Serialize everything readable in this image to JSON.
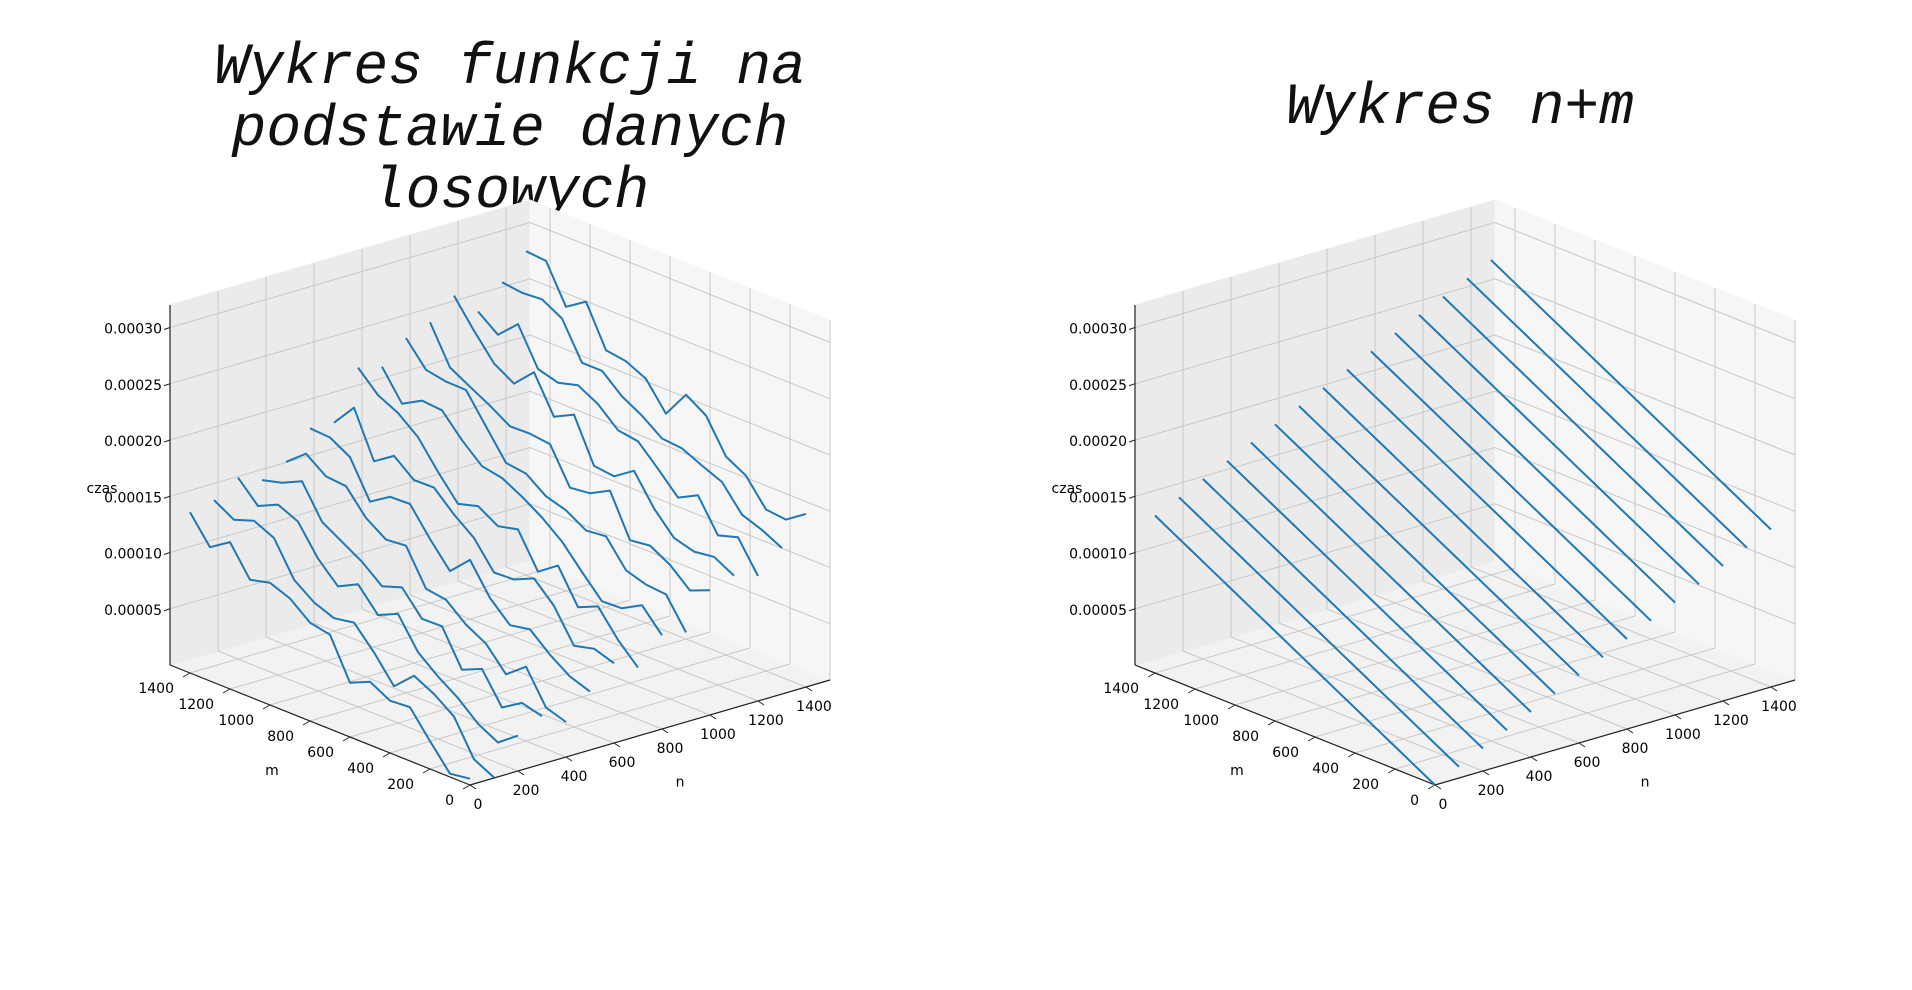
{
  "chart_data": [
    {
      "type": "line3d",
      "title": "Wykres funkcji na\npodstawie danych\nlosowych",
      "xlabel": "n",
      "ylabel": "m",
      "zlabel": "czas",
      "xlim": [
        0,
        1500
      ],
      "ylim": [
        0,
        1500
      ],
      "zlim": [
        0.0,
        0.00032
      ],
      "xticks": [
        "0",
        "200",
        "400",
        "600",
        "800",
        "1000",
        "1200",
        "1400"
      ],
      "yticks": [
        "0",
        "200",
        "400",
        "600",
        "800",
        "1000",
        "1200",
        "1400"
      ],
      "zticks": [
        "0.00005",
        "0.00010",
        "0.00015",
        "0.00020",
        "0.00025",
        "0.00030"
      ],
      "grid": true,
      "line_color": "#1f77b4",
      "series_layout": "one line per n value (0..1400 step 100), m from 0 to 1400",
      "n_values": [
        0,
        100,
        200,
        300,
        400,
        500,
        600,
        700,
        800,
        900,
        1000,
        1100,
        1200,
        1300,
        1400
      ],
      "m_values": [
        0,
        100,
        200,
        300,
        400,
        500,
        600,
        700,
        800,
        900,
        1000,
        1100,
        1200,
        1300,
        1400
      ],
      "z_model": "random",
      "z_formula_coeff": 1e-07,
      "noise": 1.8e-05
    },
    {
      "type": "line3d",
      "title": "Wykres n+m",
      "xlabel": "n",
      "ylabel": "m",
      "zlabel": "czas",
      "xlim": [
        0,
        1500
      ],
      "ylim": [
        0,
        1500
      ],
      "zlim": [
        0.0,
        0.00032
      ],
      "xticks": [
        "0",
        "200",
        "400",
        "600",
        "800",
        "1000",
        "1200",
        "1400"
      ],
      "yticks": [
        "0",
        "200",
        "400",
        "600",
        "800",
        "1000",
        "1200",
        "1400"
      ],
      "zticks": [
        "0.00005",
        "0.00010",
        "0.00015",
        "0.00020",
        "0.00025",
        "0.00030"
      ],
      "grid": true,
      "line_color": "#1f77b4",
      "series_layout": "one line per n value (0..1400 step 100), m from 0 to 1400",
      "n_values": [
        0,
        100,
        200,
        300,
        400,
        500,
        600,
        700,
        800,
        900,
        1000,
        1100,
        1200,
        1300,
        1400
      ],
      "m_values": [
        0,
        100,
        200,
        300,
        400,
        500,
        600,
        700,
        800,
        900,
        1000,
        1100,
        1200,
        1300,
        1400
      ],
      "z_model": "n+m",
      "z_formula_coeff": 1e-07,
      "noise": 0
    }
  ]
}
